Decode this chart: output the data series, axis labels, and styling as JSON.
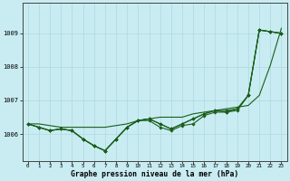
{
  "xlabel": "Graphe pression niveau de la mer (hPa)",
  "bg_color": "#c8ecf2",
  "grid_color": "#b0d8e0",
  "line_color": "#1a5e1a",
  "ylim": [
    1005.2,
    1009.9
  ],
  "yticks": [
    1006,
    1007,
    1008,
    1009
  ],
  "xlim": [
    -0.5,
    23.5
  ],
  "x_ticks": [
    0,
    1,
    2,
    3,
    4,
    5,
    6,
    7,
    8,
    9,
    10,
    11,
    12,
    13,
    14,
    15,
    16,
    17,
    18,
    19,
    20,
    21,
    22,
    23
  ],
  "series_no_marker": [
    [
      1006.3,
      1006.3,
      1006.25,
      1006.2,
      1006.2,
      1006.2,
      1006.2,
      1006.2,
      1006.25,
      1006.3,
      1006.4,
      1006.45,
      1006.5,
      1006.5,
      1006.5,
      1006.6,
      1006.65,
      1006.7,
      1006.75,
      1006.8,
      1006.85,
      1007.15,
      1008.05,
      1009.15
    ]
  ],
  "series_with_marker": [
    [
      1006.3,
      1006.2,
      1006.1,
      1006.15,
      1006.1,
      1005.85,
      1005.65,
      1005.5,
      1005.85,
      1006.2,
      1006.4,
      1006.4,
      1006.2,
      1006.1,
      1006.25,
      1006.3,
      1006.55,
      1006.65,
      1006.65,
      1006.7,
      1007.15,
      1009.1,
      1009.05,
      1009.0
    ],
    [
      1006.3,
      1006.2,
      1006.1,
      1006.15,
      1006.1,
      1005.85,
      1005.65,
      1005.5,
      1005.85,
      1006.2,
      1006.4,
      1006.45,
      1006.3,
      1006.15,
      1006.3,
      1006.45,
      1006.6,
      1006.7,
      1006.65,
      1006.75,
      1007.15,
      1009.1,
      1009.05,
      1009.0
    ],
    [
      1006.3,
      1006.2,
      1006.1,
      1006.15,
      1006.1,
      1005.85,
      1005.65,
      1005.5,
      1005.85,
      1006.2,
      1006.4,
      1006.45,
      1006.3,
      1006.15,
      1006.3,
      1006.45,
      1006.6,
      1006.7,
      1006.7,
      1006.75,
      1007.15,
      1009.1,
      1009.05,
      1009.0
    ]
  ]
}
